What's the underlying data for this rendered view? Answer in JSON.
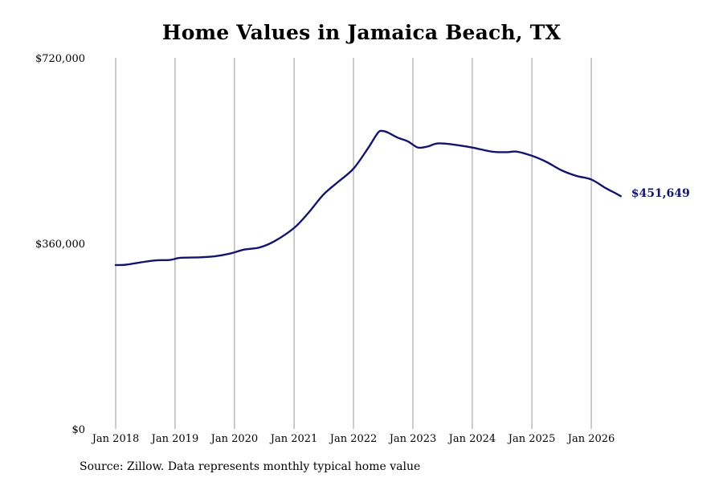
{
  "chart_data": {
    "type": "line",
    "title": "Home Values in Jamaica Beach, TX",
    "xlabel": "",
    "ylabel": "",
    "ylim": [
      0,
      720000
    ],
    "xlim": [
      "2018-01-01",
      "2026-08-01"
    ],
    "y_ticks": [
      {
        "value": 0,
        "label": "$0"
      },
      {
        "value": 360000,
        "label": "$360,000"
      },
      {
        "value": 720000,
        "label": "$720,000"
      }
    ],
    "x_ticks": [
      {
        "date": "2018-01-01",
        "label": "Jan 2018"
      },
      {
        "date": "2019-01-01",
        "label": "Jan 2019"
      },
      {
        "date": "2020-01-01",
        "label": "Jan 2020"
      },
      {
        "date": "2021-01-01",
        "label": "Jan 2021"
      },
      {
        "date": "2022-01-01",
        "label": "Jan 2022"
      },
      {
        "date": "2023-01-01",
        "label": "Jan 2023"
      },
      {
        "date": "2024-01-01",
        "label": "Jan 2024"
      },
      {
        "date": "2025-01-01",
        "label": "Jan 2025"
      },
      {
        "date": "2026-01-01",
        "label": "Jan 2026"
      }
    ],
    "grid": {
      "vertical": true,
      "horizontal": false
    },
    "line_color": "#14146b",
    "grid_color": "#999999",
    "series": [
      {
        "points": [
          {
            "x": "2018-01-01",
            "y": 318000
          },
          {
            "x": "2018-03-01",
            "y": 318500
          },
          {
            "x": "2018-06-01",
            "y": 323000
          },
          {
            "x": "2018-09-01",
            "y": 327000
          },
          {
            "x": "2018-12-01",
            "y": 328000
          },
          {
            "x": "2019-02-01",
            "y": 332000
          },
          {
            "x": "2019-06-01",
            "y": 333000
          },
          {
            "x": "2019-09-01",
            "y": 335000
          },
          {
            "x": "2019-12-01",
            "y": 340000
          },
          {
            "x": "2020-03-01",
            "y": 348000
          },
          {
            "x": "2020-06-01",
            "y": 352000
          },
          {
            "x": "2020-09-01",
            "y": 364000
          },
          {
            "x": "2021-01-01",
            "y": 390000
          },
          {
            "x": "2021-04-01",
            "y": 420000
          },
          {
            "x": "2021-07-01",
            "y": 455000
          },
          {
            "x": "2021-10-01",
            "y": 480000
          },
          {
            "x": "2022-01-01",
            "y": 505000
          },
          {
            "x": "2022-04-01",
            "y": 545000
          },
          {
            "x": "2022-06-01",
            "y": 575000
          },
          {
            "x": "2022-07-01",
            "y": 578000
          },
          {
            "x": "2022-08-01",
            "y": 575000
          },
          {
            "x": "2022-10-01",
            "y": 565000
          },
          {
            "x": "2022-12-01",
            "y": 558000
          },
          {
            "x": "2023-02-01",
            "y": 546000
          },
          {
            "x": "2023-04-01",
            "y": 548000
          },
          {
            "x": "2023-06-01",
            "y": 554000
          },
          {
            "x": "2023-09-01",
            "y": 552000
          },
          {
            "x": "2024-01-01",
            "y": 546000
          },
          {
            "x": "2024-05-01",
            "y": 538000
          },
          {
            "x": "2024-08-01",
            "y": 537000
          },
          {
            "x": "2024-10-01",
            "y": 538000
          },
          {
            "x": "2025-01-01",
            "y": 530000
          },
          {
            "x": "2025-04-01",
            "y": 518000
          },
          {
            "x": "2025-07-01",
            "y": 502000
          },
          {
            "x": "2025-10-01",
            "y": 491000
          },
          {
            "x": "2026-01-01",
            "y": 484000
          },
          {
            "x": "2026-04-01",
            "y": 467000
          },
          {
            "x": "2026-06-01",
            "y": 457000
          },
          {
            "x": "2026-07-01",
            "y": 451649
          }
        ]
      }
    ],
    "end_label": "$451,649"
  },
  "source_note": "Source: Zillow. Data represents monthly typical home value"
}
